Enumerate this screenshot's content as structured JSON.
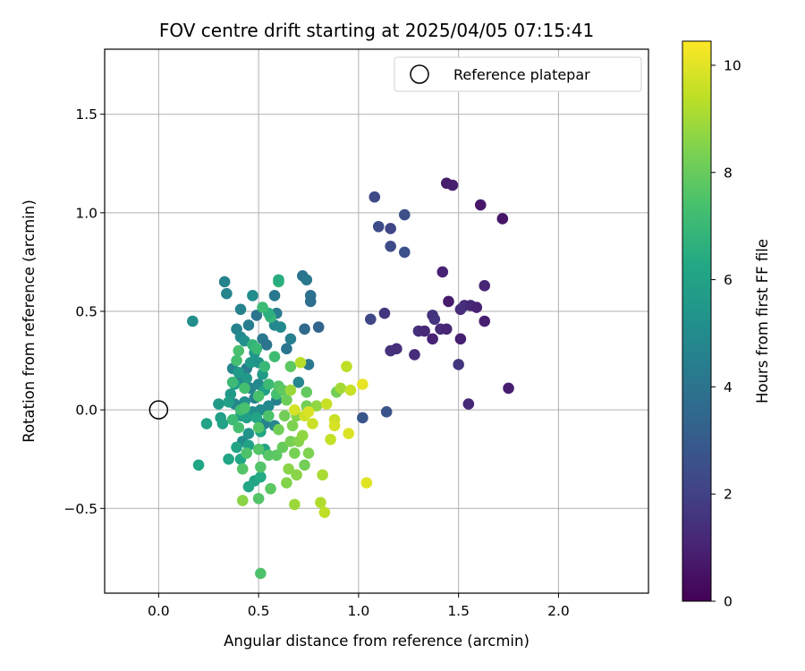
{
  "chart_data": {
    "type": "scatter",
    "title": "FOV centre drift starting at 2025/04/05 07:15:41",
    "xlabel": "Angular distance from reference (arcmin)",
    "ylabel": "Rotation from reference (arcmin)",
    "xlim": [
      -0.27,
      2.45
    ],
    "ylim": [
      -0.93,
      1.83
    ],
    "xticks": [
      0.0,
      0.5,
      1.0,
      1.5,
      2.0
    ],
    "xtick_labels": [
      "0.0",
      "0.5",
      "1.0",
      "1.5",
      "2.0"
    ],
    "yticks": [
      -0.5,
      0.0,
      0.5,
      1.0,
      1.5
    ],
    "ytick_labels": [
      "−0.5",
      "0.0",
      "0.5",
      "1.0",
      "1.5"
    ],
    "grid": true,
    "legend": {
      "position": "top-right",
      "entries": [
        "Reference platepar"
      ]
    },
    "reference_point": {
      "x": 0.0,
      "y": 0.0
    },
    "colorbar": {
      "label": "Hours from first FF file",
      "min": 0,
      "max": 10.45,
      "ticks": [
        0,
        2,
        4,
        6,
        8,
        10
      ],
      "tick_labels": [
        "0",
        "2",
        "4",
        "6",
        "8",
        "10"
      ],
      "colormap": "viridis"
    },
    "points": [
      {
        "x": 1.44,
        "y": 1.15,
        "c": 0.8
      },
      {
        "x": 1.47,
        "y": 1.14,
        "c": 0.9
      },
      {
        "x": 1.61,
        "y": 1.04,
        "c": 0.7
      },
      {
        "x": 1.72,
        "y": 0.97,
        "c": 0.6
      },
      {
        "x": 1.42,
        "y": 0.7,
        "c": 1.0
      },
      {
        "x": 1.63,
        "y": 0.63,
        "c": 1.1
      },
      {
        "x": 1.45,
        "y": 0.55,
        "c": 0.8
      },
      {
        "x": 1.51,
        "y": 0.51,
        "c": 1.3
      },
      {
        "x": 1.53,
        "y": 0.53,
        "c": 1.4
      },
      {
        "x": 1.56,
        "y": 0.53,
        "c": 1.2
      },
      {
        "x": 1.59,
        "y": 0.52,
        "c": 1.0
      },
      {
        "x": 1.63,
        "y": 0.45,
        "c": 0.9
      },
      {
        "x": 1.37,
        "y": 0.48,
        "c": 1.5
      },
      {
        "x": 1.38,
        "y": 0.46,
        "c": 1.6
      },
      {
        "x": 1.41,
        "y": 0.41,
        "c": 1.3
      },
      {
        "x": 1.44,
        "y": 0.41,
        "c": 1.1
      },
      {
        "x": 1.3,
        "y": 0.4,
        "c": 1.4
      },
      {
        "x": 1.33,
        "y": 0.4,
        "c": 1.2
      },
      {
        "x": 1.37,
        "y": 0.36,
        "c": 1.0
      },
      {
        "x": 1.51,
        "y": 0.36,
        "c": 0.9
      },
      {
        "x": 1.16,
        "y": 0.3,
        "c": 1.5
      },
      {
        "x": 1.19,
        "y": 0.31,
        "c": 1.4
      },
      {
        "x": 1.28,
        "y": 0.28,
        "c": 1.3
      },
      {
        "x": 1.5,
        "y": 0.23,
        "c": 1.6
      },
      {
        "x": 1.75,
        "y": 0.11,
        "c": 0.9
      },
      {
        "x": 1.55,
        "y": 0.03,
        "c": 1.2
      },
      {
        "x": 1.13,
        "y": 0.49,
        "c": 1.6
      },
      {
        "x": 1.06,
        "y": 0.46,
        "c": 2.2
      },
      {
        "x": 1.08,
        "y": 1.08,
        "c": 2.3
      },
      {
        "x": 1.1,
        "y": 0.93,
        "c": 2.4
      },
      {
        "x": 1.16,
        "y": 0.92,
        "c": 2.2
      },
      {
        "x": 1.23,
        "y": 0.99,
        "c": 2.5
      },
      {
        "x": 1.16,
        "y": 0.83,
        "c": 2.4
      },
      {
        "x": 1.23,
        "y": 0.8,
        "c": 2.6
      },
      {
        "x": 1.14,
        "y": -0.01,
        "c": 2.7
      },
      {
        "x": 1.02,
        "y": -0.04,
        "c": 2.8
      },
      {
        "x": 0.33,
        "y": 0.65,
        "c": 4.6
      },
      {
        "x": 0.34,
        "y": 0.59,
        "c": 4.7
      },
      {
        "x": 0.47,
        "y": 0.58,
        "c": 5.0
      },
      {
        "x": 0.58,
        "y": 0.58,
        "c": 4.2
      },
      {
        "x": 0.72,
        "y": 0.68,
        "c": 4.0
      },
      {
        "x": 0.74,
        "y": 0.66,
        "c": 4.2
      },
      {
        "x": 0.76,
        "y": 0.58,
        "c": 3.9
      },
      {
        "x": 0.76,
        "y": 0.55,
        "c": 3.8
      },
      {
        "x": 0.73,
        "y": 0.41,
        "c": 3.6
      },
      {
        "x": 0.8,
        "y": 0.42,
        "c": 3.4
      },
      {
        "x": 0.17,
        "y": 0.45,
        "c": 5.1
      },
      {
        "x": 0.41,
        "y": 0.51,
        "c": 4.6
      },
      {
        "x": 0.49,
        "y": 0.48,
        "c": 4.0
      },
      {
        "x": 0.59,
        "y": 0.49,
        "c": 4.3
      },
      {
        "x": 0.58,
        "y": 0.43,
        "c": 4.8
      },
      {
        "x": 0.61,
        "y": 0.42,
        "c": 4.9
      },
      {
        "x": 0.39,
        "y": 0.41,
        "c": 4.6
      },
      {
        "x": 0.41,
        "y": 0.37,
        "c": 4.9
      },
      {
        "x": 0.45,
        "y": 0.43,
        "c": 4.4
      },
      {
        "x": 0.43,
        "y": 0.35,
        "c": 5.2
      },
      {
        "x": 0.52,
        "y": 0.36,
        "c": 4.2
      },
      {
        "x": 0.54,
        "y": 0.33,
        "c": 4.0
      },
      {
        "x": 0.66,
        "y": 0.36,
        "c": 4.5
      },
      {
        "x": 0.64,
        "y": 0.31,
        "c": 4.1
      },
      {
        "x": 0.75,
        "y": 0.23,
        "c": 4.2
      },
      {
        "x": 0.7,
        "y": 0.14,
        "c": 4.8
      },
      {
        "x": 0.37,
        "y": 0.21,
        "c": 4.8
      },
      {
        "x": 0.44,
        "y": 0.21,
        "c": 4.4
      },
      {
        "x": 0.4,
        "y": 0.15,
        "c": 4.8
      },
      {
        "x": 0.46,
        "y": 0.11,
        "c": 4.7
      },
      {
        "x": 0.5,
        "y": 0.13,
        "c": 4.9
      },
      {
        "x": 0.48,
        "y": 0.06,
        "c": 4.6
      },
      {
        "x": 0.43,
        "y": 0.04,
        "c": 5.1
      },
      {
        "x": 0.38,
        "y": 0.03,
        "c": 4.8
      },
      {
        "x": 0.47,
        "y": -0.01,
        "c": 5.2
      },
      {
        "x": 0.51,
        "y": 0.0,
        "c": 5.0
      },
      {
        "x": 0.55,
        "y": 0.02,
        "c": 4.9
      },
      {
        "x": 0.59,
        "y": 0.05,
        "c": 4.5
      },
      {
        "x": 0.53,
        "y": -0.07,
        "c": 4.6
      },
      {
        "x": 0.58,
        "y": -0.08,
        "c": 4.8
      },
      {
        "x": 0.42,
        "y": -0.16,
        "c": 5.0
      },
      {
        "x": 0.45,
        "y": -0.12,
        "c": 5.3
      },
      {
        "x": 0.46,
        "y": 0.24,
        "c": 5.6
      },
      {
        "x": 0.48,
        "y": 0.29,
        "c": 5.5
      },
      {
        "x": 0.4,
        "y": 0.19,
        "c": 5.7
      },
      {
        "x": 0.38,
        "y": 0.13,
        "c": 5.8
      },
      {
        "x": 0.36,
        "y": 0.08,
        "c": 5.6
      },
      {
        "x": 0.35,
        "y": 0.04,
        "c": 5.9
      },
      {
        "x": 0.44,
        "y": 0.16,
        "c": 5.6
      },
      {
        "x": 0.5,
        "y": 0.24,
        "c": 5.4
      },
      {
        "x": 0.52,
        "y": 0.18,
        "c": 5.7
      },
      {
        "x": 0.53,
        "y": 0.1,
        "c": 5.9
      },
      {
        "x": 0.44,
        "y": -0.04,
        "c": 5.8
      },
      {
        "x": 0.41,
        "y": -0.03,
        "c": 5.9
      },
      {
        "x": 0.3,
        "y": 0.03,
        "c": 5.6
      },
      {
        "x": 0.31,
        "y": -0.04,
        "c": 5.8
      },
      {
        "x": 0.24,
        "y": -0.07,
        "c": 6.0
      },
      {
        "x": 0.32,
        "y": -0.07,
        "c": 6.0
      },
      {
        "x": 0.2,
        "y": -0.28,
        "c": 6.2
      },
      {
        "x": 0.35,
        "y": -0.25,
        "c": 6.2
      },
      {
        "x": 0.41,
        "y": -0.25,
        "c": 6.2
      },
      {
        "x": 0.39,
        "y": -0.19,
        "c": 6.1
      },
      {
        "x": 0.49,
        "y": -0.04,
        "c": 6.1
      },
      {
        "x": 0.51,
        "y": -0.11,
        "c": 6.2
      },
      {
        "x": 0.45,
        "y": -0.18,
        "c": 6.0
      },
      {
        "x": 0.53,
        "y": -0.2,
        "c": 6.1
      },
      {
        "x": 0.48,
        "y": -0.36,
        "c": 6.1
      },
      {
        "x": 0.51,
        "y": -0.34,
        "c": 6.3
      },
      {
        "x": 0.45,
        "y": -0.39,
        "c": 6.2
      },
      {
        "x": 0.56,
        "y": 0.47,
        "c": 6.9
      },
      {
        "x": 0.55,
        "y": 0.49,
        "c": 6.6
      },
      {
        "x": 0.6,
        "y": 0.65,
        "c": 6.9
      },
      {
        "x": 0.6,
        "y": 0.66,
        "c": 6.5
      },
      {
        "x": 0.52,
        "y": 0.52,
        "c": 7.1
      },
      {
        "x": 0.4,
        "y": 0.3,
        "c": 7.4
      },
      {
        "x": 0.47,
        "y": 0.33,
        "c": 6.8
      },
      {
        "x": 0.49,
        "y": 0.31,
        "c": 7.0
      },
      {
        "x": 0.58,
        "y": 0.27,
        "c": 7.2
      },
      {
        "x": 0.53,
        "y": 0.22,
        "c": 7.0
      },
      {
        "x": 0.39,
        "y": 0.25,
        "c": 7.3
      },
      {
        "x": 0.37,
        "y": 0.14,
        "c": 7.1
      },
      {
        "x": 0.43,
        "y": 0.11,
        "c": 7.3
      },
      {
        "x": 0.5,
        "y": 0.07,
        "c": 7.4
      },
      {
        "x": 0.55,
        "y": 0.13,
        "c": 7.1
      },
      {
        "x": 0.59,
        "y": 0.08,
        "c": 7.3
      },
      {
        "x": 0.6,
        "y": 0.12,
        "c": 7.6
      },
      {
        "x": 0.62,
        "y": 0.1,
        "c": 7.8
      },
      {
        "x": 0.66,
        "y": 0.22,
        "c": 7.8
      },
      {
        "x": 0.41,
        "y": 0.0,
        "c": 7.2
      },
      {
        "x": 0.43,
        "y": 0.01,
        "c": 7.4
      },
      {
        "x": 0.37,
        "y": -0.05,
        "c": 7.1
      },
      {
        "x": 0.4,
        "y": -0.09,
        "c": 7.3
      },
      {
        "x": 0.5,
        "y": -0.09,
        "c": 7.6
      },
      {
        "x": 0.55,
        "y": -0.03,
        "c": 7.5
      },
      {
        "x": 0.44,
        "y": -0.22,
        "c": 7.5
      },
      {
        "x": 0.5,
        "y": -0.2,
        "c": 7.6
      },
      {
        "x": 0.42,
        "y": -0.3,
        "c": 7.6
      },
      {
        "x": 0.51,
        "y": -0.29,
        "c": 7.6
      },
      {
        "x": 0.55,
        "y": -0.23,
        "c": 7.7
      },
      {
        "x": 0.59,
        "y": -0.23,
        "c": 7.8
      },
      {
        "x": 0.62,
        "y": -0.19,
        "c": 8.0
      },
      {
        "x": 0.56,
        "y": -0.4,
        "c": 7.8
      },
      {
        "x": 0.5,
        "y": -0.45,
        "c": 7.6
      },
      {
        "x": 0.51,
        "y": -0.83,
        "c": 7.5
      },
      {
        "x": 0.64,
        "y": 0.05,
        "c": 8.1
      },
      {
        "x": 0.63,
        "y": -0.03,
        "c": 8.2
      },
      {
        "x": 0.6,
        "y": -0.1,
        "c": 8.2
      },
      {
        "x": 0.67,
        "y": -0.08,
        "c": 8.4
      },
      {
        "x": 0.69,
        "y": -0.03,
        "c": 8.5
      },
      {
        "x": 0.74,
        "y": 0.02,
        "c": 8.2
      },
      {
        "x": 0.74,
        "y": 0.09,
        "c": 7.9
      },
      {
        "x": 0.66,
        "y": -0.16,
        "c": 8.3
      },
      {
        "x": 0.7,
        "y": -0.16,
        "c": 8.5
      },
      {
        "x": 0.68,
        "y": -0.22,
        "c": 8.3
      },
      {
        "x": 0.73,
        "y": -0.28,
        "c": 8.2
      },
      {
        "x": 0.65,
        "y": -0.3,
        "c": 8.6
      },
      {
        "x": 0.75,
        "y": -0.22,
        "c": 8.4
      },
      {
        "x": 0.72,
        "y": -0.13,
        "c": 8.7
      },
      {
        "x": 0.64,
        "y": -0.37,
        "c": 8.5
      },
      {
        "x": 0.69,
        "y": -0.33,
        "c": 8.6
      },
      {
        "x": 0.42,
        "y": -0.46,
        "c": 8.6
      },
      {
        "x": 0.89,
        "y": 0.09,
        "c": 8.2
      },
      {
        "x": 0.79,
        "y": 0.02,
        "c": 8.7
      },
      {
        "x": 0.66,
        "y": 0.1,
        "c": 8.9
      },
      {
        "x": 0.68,
        "y": -0.48,
        "c": 8.9
      },
      {
        "x": 0.82,
        "y": -0.33,
        "c": 9.1
      },
      {
        "x": 0.81,
        "y": -0.47,
        "c": 9.2
      },
      {
        "x": 0.83,
        "y": -0.52,
        "c": 9.4
      },
      {
        "x": 0.71,
        "y": 0.24,
        "c": 9.3
      },
      {
        "x": 0.77,
        "y": -0.07,
        "c": 9.6
      },
      {
        "x": 0.73,
        "y": -0.03,
        "c": 9.7
      },
      {
        "x": 0.68,
        "y": 0.0,
        "c": 9.8
      },
      {
        "x": 0.75,
        "y": -0.01,
        "c": 9.9
      },
      {
        "x": 0.84,
        "y": 0.03,
        "c": 9.6
      },
      {
        "x": 0.91,
        "y": 0.11,
        "c": 9.0
      },
      {
        "x": 0.94,
        "y": 0.22,
        "c": 9.4
      },
      {
        "x": 0.96,
        "y": 0.1,
        "c": 9.6
      },
      {
        "x": 0.88,
        "y": -0.05,
        "c": 9.6
      },
      {
        "x": 0.88,
        "y": -0.08,
        "c": 9.8
      },
      {
        "x": 0.95,
        "y": -0.12,
        "c": 9.9
      },
      {
        "x": 0.86,
        "y": -0.15,
        "c": 9.5
      },
      {
        "x": 1.02,
        "y": 0.13,
        "c": 10.1
      },
      {
        "x": 1.04,
        "y": -0.37,
        "c": 10.0
      }
    ]
  }
}
